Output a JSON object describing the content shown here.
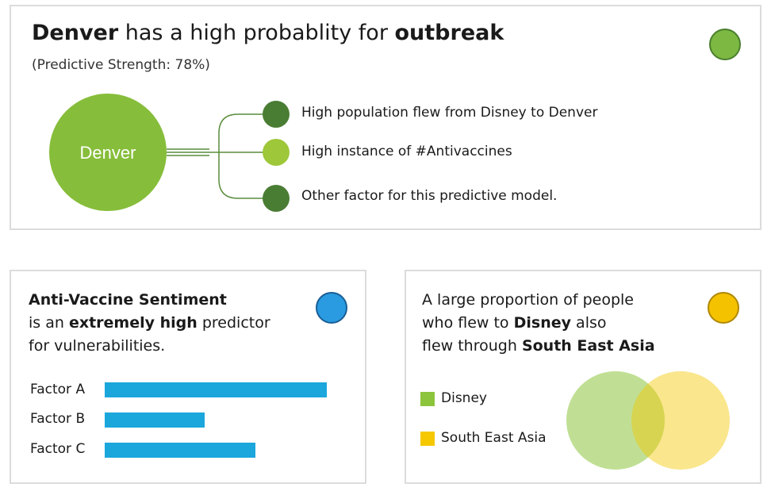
{
  "top_card": {
    "headline_city": "Denver",
    "headline_mid": " has a high probablity for ",
    "headline_bold": "outbreak",
    "subline": "(Predictive Strength: 78%)",
    "hub_label": "Denver",
    "factors": [
      {
        "label": "High population flew from Disney to Denver",
        "color": "#4a7d34"
      },
      {
        "label": "High instance of #Antivaccines",
        "color": "#9ec73a"
      },
      {
        "label": "Other factor for this predictive model.",
        "color": "#4a7d34"
      }
    ],
    "hub_color": "#86bd3a",
    "status_color": "#7cb842"
  },
  "left_card": {
    "title_bold": "Anti-Vaccine Sentiment",
    "line2_pre": "is an ",
    "line2_bold": "extremely high",
    "line2_post": " predictor",
    "line3": "for vulnerabilities.",
    "status_color": "#2a9be0",
    "bars": [
      {
        "label": "Factor A",
        "value": 1.0
      },
      {
        "label": "Factor B",
        "value": 0.45
      },
      {
        "label": "Factor C",
        "value": 0.68
      }
    ],
    "bar_color": "#1ba6dc"
  },
  "right_card": {
    "line1": "A large proportion of people",
    "line2_pre": "who flew to ",
    "line2_bold": "Disney",
    "line2_post": " also",
    "line3_pre": "flew through ",
    "line3_bold": "South East Asia",
    "status_color": "#f5c200",
    "legend": [
      {
        "label": "Disney",
        "color": "#8cc43c"
      },
      {
        "label": "South East Asia",
        "color": "#f5c800"
      }
    ]
  }
}
